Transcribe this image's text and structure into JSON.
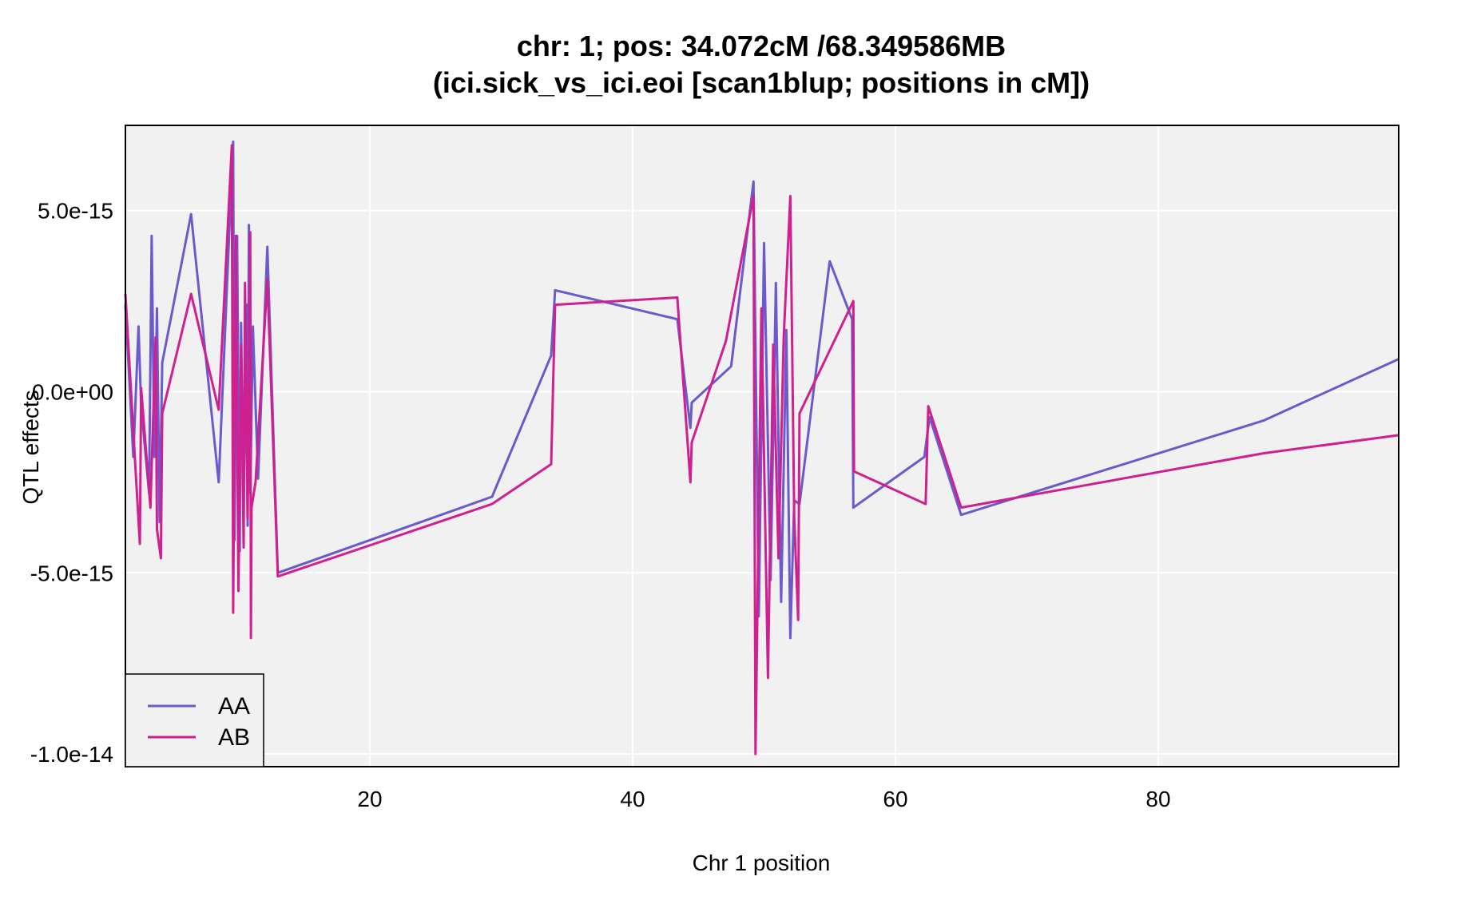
{
  "chart_data": {
    "type": "line",
    "title": "chr: 1; pos: 34.072cM /68.349586MB",
    "subtitle": "(ici.sick_vs_ici.eoi [scan1blup; positions in cM])",
    "xlabel": "Chr 1 position",
    "ylabel": "QTL effects",
    "xlim": [
      1.4,
      98.3
    ],
    "ylim": [
      -1.035e-14,
      7.35e-15
    ],
    "x_ticks": [
      20,
      40,
      60,
      80
    ],
    "x_tick_labels": [
      "20",
      "40",
      "60",
      "80"
    ],
    "y_ticks": [
      -1e-14,
      -5e-15,
      0,
      5e-15
    ],
    "y_tick_labels": [
      "-1.0e-14",
      "-5.0e-15",
      "0.0e+00",
      "5.0e-15"
    ],
    "grid": true,
    "background": "#f1f1f1",
    "legend_position": "bottom-left",
    "series": [
      {
        "name": "AA",
        "color": "#6a5acd",
        "points": [
          [
            1.4,
            2.4e-15
          ],
          [
            2.0,
            -1.8e-15
          ],
          [
            2.4,
            1.8e-15
          ],
          [
            2.6,
            -4e-16
          ],
          [
            3.2,
            -2.8e-15
          ],
          [
            3.4,
            4.3e-15
          ],
          [
            3.6,
            -1.8e-15
          ],
          [
            3.8,
            2.3e-15
          ],
          [
            4.0,
            -3.6e-15
          ],
          [
            4.2,
            8e-16
          ],
          [
            6.4,
            4.9e-15
          ],
          [
            8.5,
            -2.5e-15
          ],
          [
            9.3,
            4.4e-15
          ],
          [
            9.6,
            6.9e-15
          ],
          [
            9.7,
            -4.1e-15
          ],
          [
            9.9,
            4.3e-15
          ],
          [
            10.1,
            -4.4e-15
          ],
          [
            10.2,
            1.9e-15
          ],
          [
            10.4,
            -3.4e-15
          ],
          [
            10.6,
            2.4e-15
          ],
          [
            10.7,
            -3.7e-15
          ],
          [
            10.8,
            4.6e-15
          ],
          [
            10.9,
            -2.8e-15
          ],
          [
            11.1,
            1.8e-15
          ],
          [
            11.5,
            -2.4e-15
          ],
          [
            12.2,
            4e-15
          ],
          [
            13.0,
            -5e-15
          ],
          [
            29.3,
            -2.9e-15
          ],
          [
            33.8,
            1e-15
          ],
          [
            34.1,
            2.8e-15
          ],
          [
            43.4,
            2e-15
          ],
          [
            44.4,
            -1e-15
          ],
          [
            44.5,
            -3e-16
          ],
          [
            47.5,
            7e-16
          ],
          [
            49.2,
            5.8e-15
          ],
          [
            49.6,
            -6.2e-15
          ],
          [
            50.0,
            4.1e-15
          ],
          [
            50.5,
            -5.2e-15
          ],
          [
            50.9,
            3e-15
          ],
          [
            51.3,
            -5.8e-15
          ],
          [
            51.7,
            1.7e-15
          ],
          [
            52.0,
            -6.8e-15
          ],
          [
            52.3,
            -3e-15
          ],
          [
            52.7,
            -3.1e-15
          ],
          [
            55.0,
            3.6e-15
          ],
          [
            56.7,
            2e-15
          ],
          [
            56.8,
            -3.2e-15
          ],
          [
            62.2,
            -1.8e-15
          ],
          [
            62.6,
            -7e-16
          ],
          [
            65.0,
            -3.4e-15
          ],
          [
            88.0,
            -8e-16
          ],
          [
            98.3,
            9e-16
          ]
        ]
      },
      {
        "name": "AB",
        "color": "#d0208f",
        "points": [
          [
            1.4,
            2.7e-15
          ],
          [
            2.1,
            -1.7e-15
          ],
          [
            2.5,
            -4.2e-15
          ],
          [
            2.6,
            1e-16
          ],
          [
            3.3,
            -3.2e-15
          ],
          [
            3.7,
            1.5e-15
          ],
          [
            3.8,
            -3.8e-15
          ],
          [
            4.1,
            -4.6e-15
          ],
          [
            4.2,
            -6e-16
          ],
          [
            6.4,
            2.7e-15
          ],
          [
            8.5,
            -5e-16
          ],
          [
            9.5,
            6.8e-15
          ],
          [
            9.6,
            -6.1e-15
          ],
          [
            9.8,
            4.3e-15
          ],
          [
            10.0,
            -5.5e-15
          ],
          [
            10.2,
            1.3e-15
          ],
          [
            10.4,
            -4.3e-15
          ],
          [
            10.5,
            3e-15
          ],
          [
            10.7,
            -3.5e-15
          ],
          [
            10.9,
            4.4e-15
          ],
          [
            10.95,
            -6.8e-15
          ],
          [
            11.0,
            -3.2e-15
          ],
          [
            11.3,
            -2.5e-15
          ],
          [
            12.2,
            3.1e-15
          ],
          [
            13.0,
            -5.1e-15
          ],
          [
            29.3,
            -3.1e-15
          ],
          [
            33.8,
            -2e-15
          ],
          [
            34.1,
            2.4e-15
          ],
          [
            43.4,
            2.6e-15
          ],
          [
            44.4,
            -2.5e-15
          ],
          [
            44.5,
            -1.4e-15
          ],
          [
            47.1,
            1.4e-15
          ],
          [
            49.2,
            5.4e-15
          ],
          [
            49.35,
            -1e-14
          ],
          [
            49.8,
            2.3e-15
          ],
          [
            50.3,
            -7.9e-15
          ],
          [
            50.7,
            1.3e-15
          ],
          [
            51.1,
            -4.6e-15
          ],
          [
            51.5,
            1.5e-15
          ],
          [
            52.0,
            5.4e-15
          ],
          [
            52.3,
            -3.5e-15
          ],
          [
            52.6,
            -6.3e-15
          ],
          [
            52.7,
            -6e-16
          ],
          [
            56.8,
            2.5e-15
          ],
          [
            56.85,
            -2.2e-15
          ],
          [
            62.3,
            -3.1e-15
          ],
          [
            62.5,
            -4e-16
          ],
          [
            65.0,
            -3.2e-15
          ],
          [
            88.0,
            -1.7e-15
          ],
          [
            98.3,
            -1.2e-15
          ]
        ]
      }
    ]
  }
}
